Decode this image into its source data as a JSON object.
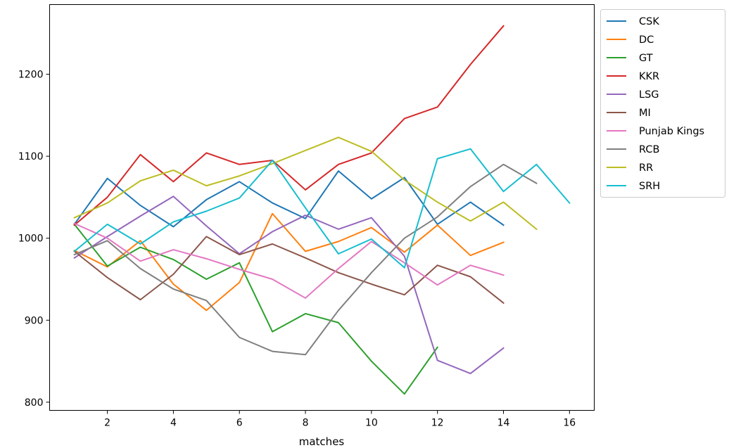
{
  "chart_data": {
    "type": "line",
    "title": "",
    "xlabel": "matches",
    "ylabel": "",
    "xlim": [
      0.25,
      16.75
    ],
    "ylim": [
      790,
      1285
    ],
    "xticks": [
      2,
      4,
      6,
      8,
      10,
      12,
      14,
      16
    ],
    "yticks": [
      800,
      900,
      1000,
      1100,
      1200
    ],
    "grid": false,
    "legend_position": "outside-upper-right",
    "series": [
      {
        "name": "CSK",
        "color": "#1f77b4",
        "x": [
          1,
          2,
          3,
          4,
          5,
          6,
          7,
          8,
          9,
          10,
          11,
          12,
          13,
          14
        ],
        "y": [
          1017,
          1073,
          1040,
          1014,
          1047,
          1069,
          1043,
          1024,
          1082,
          1048,
          1074,
          1017,
          1044,
          1016
        ]
      },
      {
        "name": "DC",
        "color": "#ff7f0e",
        "x": [
          1,
          2,
          3,
          4,
          5,
          6,
          7,
          8,
          9,
          10,
          11,
          12,
          13,
          14
        ],
        "y": [
          985,
          965,
          997,
          944,
          912,
          946,
          1030,
          984,
          996,
          1013,
          983,
          1016,
          979,
          995
        ]
      },
      {
        "name": "GT",
        "color": "#2ca02c",
        "x": [
          1,
          2,
          3,
          4,
          5,
          6,
          7,
          8,
          9,
          10,
          11,
          12
        ],
        "y": [
          1017,
          966,
          989,
          974,
          950,
          970,
          886,
          908,
          897,
          850,
          810,
          867
        ]
      },
      {
        "name": "KKR",
        "color": "#d62728",
        "x": [
          1,
          2,
          3,
          4,
          5,
          6,
          7,
          8,
          9,
          10,
          11,
          12,
          13,
          14
        ],
        "y": [
          1016,
          1050,
          1102,
          1069,
          1104,
          1090,
          1095,
          1059,
          1090,
          1104,
          1146,
          1160,
          1212,
          1259
        ]
      },
      {
        "name": "LSG",
        "color": "#9467bd",
        "x": [
          1,
          2,
          3,
          4,
          5,
          6,
          7,
          8,
          9,
          10,
          11,
          12,
          13,
          14
        ],
        "y": [
          976,
          1002,
          1027,
          1051,
          1015,
          981,
          1008,
          1028,
          1011,
          1025,
          978,
          851,
          835,
          866
        ]
      },
      {
        "name": "MI",
        "color": "#8c564b",
        "x": [
          1,
          2,
          3,
          4,
          5,
          6,
          7,
          8,
          9,
          10,
          11,
          12,
          13,
          14
        ],
        "y": [
          984,
          952,
          925,
          956,
          1002,
          980,
          993,
          976,
          958,
          944,
          931,
          967,
          953,
          921
        ]
      },
      {
        "name": "Punjab Kings",
        "color": "#e377c2",
        "x": [
          1,
          2,
          3,
          4,
          5,
          6,
          7,
          8,
          9,
          10,
          11,
          12,
          13,
          14
        ],
        "y": [
          1018,
          1000,
          972,
          986,
          975,
          962,
          950,
          927,
          963,
          996,
          970,
          943,
          967,
          955
        ]
      },
      {
        "name": "RCB",
        "color": "#7f7f7f",
        "x": [
          1,
          2,
          3,
          4,
          5,
          6,
          7,
          8,
          9,
          10,
          11,
          12,
          13,
          14,
          15
        ],
        "y": [
          980,
          997,
          963,
          938,
          924,
          879,
          862,
          858,
          912,
          958,
          1000,
          1026,
          1063,
          1090,
          1067
        ]
      },
      {
        "name": "RR",
        "color": "#bcbd22",
        "x": [
          1,
          2,
          3,
          4,
          5,
          6,
          7,
          8,
          9,
          10,
          11,
          12,
          13,
          14,
          15
        ],
        "y": [
          1025,
          1043,
          1070,
          1083,
          1064,
          1076,
          1091,
          1107,
          1123,
          1106,
          1071,
          1044,
          1021,
          1044,
          1011
        ]
      },
      {
        "name": "SRH",
        "color": "#17becf",
        "x": [
          1,
          2,
          3,
          4,
          5,
          6,
          7,
          8,
          9,
          10,
          11,
          12,
          13,
          14,
          15,
          16
        ],
        "y": [
          984,
          1017,
          993,
          1020,
          1033,
          1049,
          1095,
          1037,
          981,
          999,
          964,
          1097,
          1109,
          1057,
          1090,
          1043
        ]
      }
    ]
  }
}
